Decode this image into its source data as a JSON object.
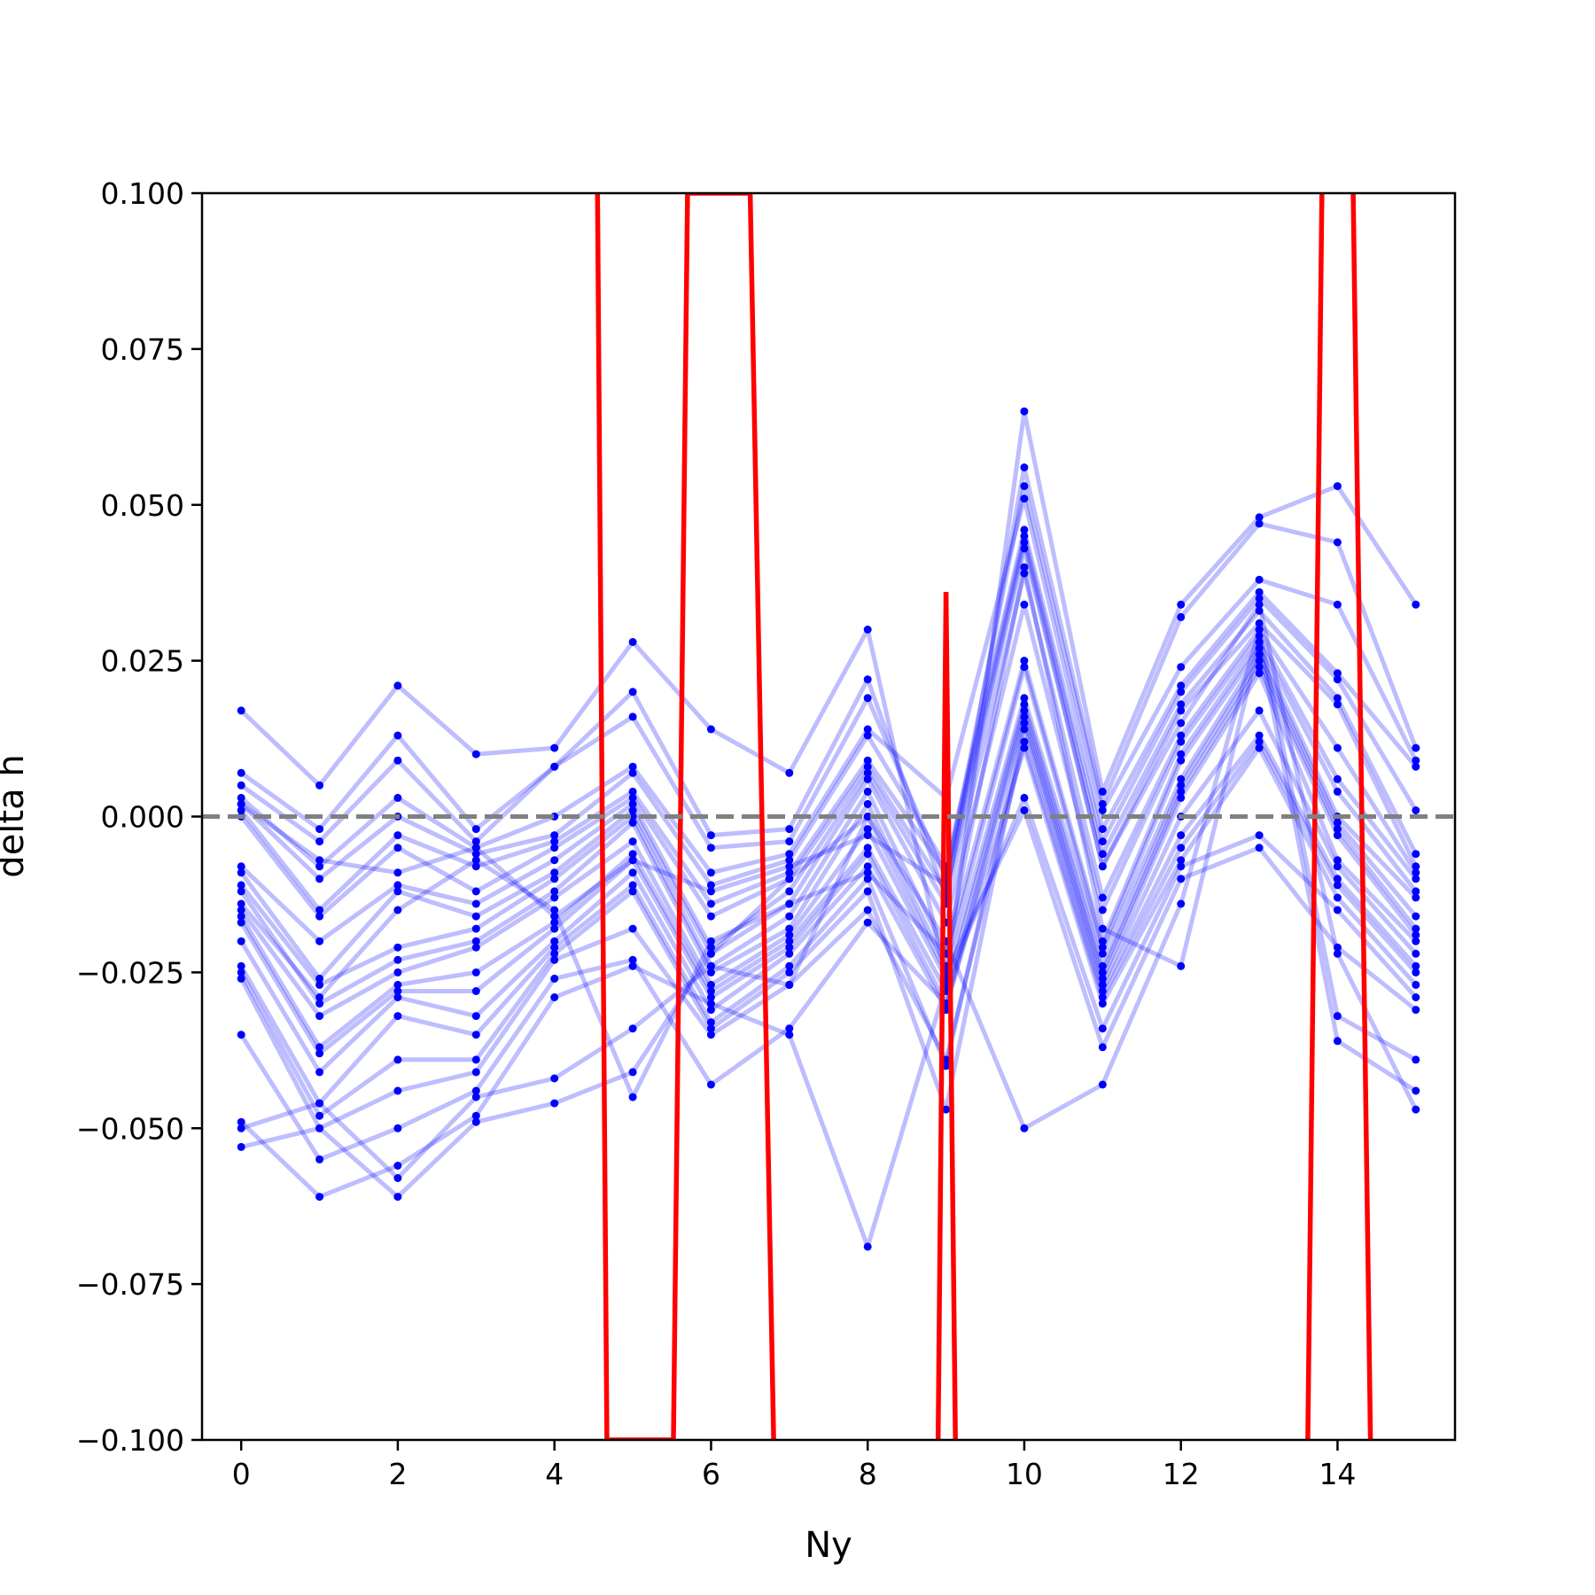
{
  "chart_data": {
    "type": "line",
    "title": "",
    "xlabel": "Ny",
    "ylabel": "delta h",
    "xlim": [
      -0.5,
      15.5
    ],
    "ylim": [
      -0.1,
      0.1
    ],
    "xticks": [
      0,
      2,
      4,
      6,
      8,
      10,
      12,
      14
    ],
    "xtick_labels": [
      "0",
      "2",
      "4",
      "6",
      "8",
      "10",
      "12",
      "14"
    ],
    "yticks": [
      0.1,
      0.075,
      0.05,
      0.025,
      0.0,
      -0.025,
      -0.05,
      -0.075,
      -0.1
    ],
    "ytick_labels": [
      "0.100",
      "0.075",
      "0.050",
      "0.025",
      "0.000",
      "−0.025",
      "−0.050",
      "−0.075",
      "−0.100"
    ],
    "grid": false,
    "reference_line": {
      "y": 0.0,
      "style": "dashed",
      "color": "#808080"
    },
    "colors": {
      "samples": "#0000ff",
      "highlight": "#ff0000"
    },
    "x": [
      0,
      1,
      2,
      3,
      4,
      5,
      6,
      7,
      8,
      9,
      10,
      11,
      12,
      13,
      14,
      15
    ],
    "sample_series": [
      {
        "values": [
          0.017,
          0.005,
          0.021,
          0.01,
          0.011,
          0.028,
          0.014,
          0.007,
          0.03,
          -0.026,
          0.065,
          0.004,
          0.034,
          0.048,
          0.053,
          0.034
        ]
      },
      {
        "values": [
          0.007,
          -0.002,
          0.013,
          -0.002,
          0.008,
          0.02,
          -0.003,
          -0.002,
          0.022,
          -0.013,
          0.056,
          0.002,
          0.032,
          0.047,
          0.044,
          0.011
        ]
      },
      {
        "values": [
          0.005,
          -0.004,
          0.009,
          -0.004,
          0.008,
          0.016,
          -0.005,
          -0.004,
          0.019,
          -0.01,
          0.053,
          0.001,
          0.024,
          0.038,
          0.034,
          0.009
        ]
      },
      {
        "values": [
          0.003,
          -0.008,
          0.003,
          -0.005,
          0.0,
          0.008,
          -0.009,
          -0.006,
          0.014,
          0.003,
          0.051,
          -0.002,
          0.021,
          0.036,
          0.023,
          0.008
        ]
      },
      {
        "values": [
          0.002,
          -0.01,
          0.0,
          -0.006,
          -0.003,
          0.007,
          -0.011,
          -0.007,
          0.013,
          -0.008,
          0.046,
          -0.004,
          0.02,
          0.035,
          0.022,
          0.001
        ]
      },
      {
        "values": [
          0.001,
          -0.015,
          -0.003,
          -0.008,
          -0.004,
          0.004,
          -0.014,
          -0.009,
          0.009,
          -0.009,
          0.045,
          -0.006,
          0.018,
          0.033,
          0.019,
          -0.006
        ]
      },
      {
        "values": [
          0.0,
          -0.016,
          -0.005,
          -0.012,
          -0.005,
          0.003,
          -0.016,
          -0.01,
          0.008,
          -0.012,
          0.043,
          -0.008,
          0.017,
          0.031,
          0.018,
          -0.008
        ]
      },
      {
        "values": [
          -0.008,
          -0.02,
          -0.011,
          -0.014,
          -0.007,
          0.002,
          -0.021,
          -0.012,
          0.007,
          -0.014,
          0.039,
          -0.013,
          0.013,
          0.03,
          0.011,
          -0.009
        ]
      },
      {
        "values": [
          -0.009,
          -0.026,
          -0.012,
          -0.016,
          -0.009,
          0.001,
          -0.022,
          -0.014,
          0.006,
          -0.017,
          0.034,
          -0.015,
          0.012,
          0.029,
          0.006,
          -0.01
        ]
      },
      {
        "values": [
          -0.011,
          -0.027,
          -0.021,
          -0.018,
          -0.01,
          0.0,
          -0.024,
          -0.016,
          0.004,
          -0.022,
          0.025,
          -0.02,
          0.01,
          0.028,
          0.004,
          -0.012
        ]
      },
      {
        "values": [
          -0.012,
          -0.03,
          -0.023,
          -0.02,
          -0.012,
          -0.001,
          -0.025,
          -0.018,
          0.002,
          -0.024,
          0.024,
          -0.021,
          0.009,
          0.027,
          0.0,
          -0.013
        ]
      },
      {
        "values": [
          -0.015,
          -0.032,
          -0.025,
          -0.021,
          -0.013,
          -0.004,
          -0.027,
          -0.019,
          -0.002,
          -0.026,
          0.019,
          -0.022,
          0.006,
          0.026,
          -0.001,
          -0.016
        ]
      },
      {
        "values": [
          -0.016,
          -0.037,
          -0.027,
          -0.025,
          -0.017,
          -0.006,
          -0.028,
          -0.02,
          -0.005,
          -0.028,
          0.018,
          -0.024,
          0.005,
          0.025,
          -0.002,
          -0.018
        ]
      },
      {
        "values": [
          -0.017,
          -0.038,
          -0.028,
          -0.028,
          -0.018,
          -0.007,
          -0.029,
          -0.021,
          -0.006,
          -0.03,
          0.017,
          -0.025,
          0.004,
          0.024,
          -0.003,
          -0.019
        ]
      },
      {
        "values": [
          -0.02,
          -0.041,
          -0.029,
          -0.032,
          -0.02,
          -0.009,
          -0.031,
          -0.022,
          -0.008,
          -0.031,
          0.016,
          -0.026,
          0.003,
          0.023,
          -0.007,
          -0.02
        ]
      },
      {
        "values": [
          -0.024,
          -0.046,
          -0.032,
          -0.035,
          -0.021,
          -0.011,
          -0.033,
          -0.024,
          -0.01,
          -0.04,
          0.015,
          -0.027,
          0.0,
          0.017,
          -0.008,
          -0.022
        ]
      },
      {
        "values": [
          -0.025,
          -0.048,
          -0.039,
          -0.039,
          -0.022,
          -0.012,
          -0.034,
          -0.025,
          -0.012,
          -0.047,
          0.014,
          -0.028,
          -0.003,
          0.013,
          -0.01,
          -0.024
        ]
      },
      {
        "values": [
          -0.026,
          -0.05,
          -0.044,
          -0.041,
          -0.023,
          -0.018,
          -0.035,
          -0.027,
          -0.015,
          -0.039,
          0.012,
          -0.029,
          -0.005,
          0.012,
          -0.011,
          -0.025
        ]
      },
      {
        "values": [
          -0.035,
          -0.055,
          -0.05,
          -0.044,
          -0.026,
          -0.023,
          -0.043,
          -0.034,
          -0.017,
          -0.03,
          0.011,
          -0.03,
          -0.007,
          0.011,
          -0.013,
          -0.027
        ]
      },
      {
        "values": [
          -0.049,
          -0.061,
          -0.056,
          -0.048,
          -0.029,
          -0.024,
          -0.03,
          -0.035,
          -0.069,
          -0.027,
          0.003,
          -0.034,
          -0.008,
          -0.003,
          -0.015,
          -0.029
        ]
      },
      {
        "values": [
          -0.05,
          -0.046,
          -0.058,
          -0.045,
          -0.042,
          -0.034,
          -0.024,
          -0.027,
          0.0,
          -0.025,
          0.001,
          -0.037,
          -0.01,
          -0.005,
          -0.021,
          -0.031
        ]
      },
      {
        "values": [
          -0.053,
          -0.05,
          -0.061,
          -0.049,
          -0.046,
          -0.041,
          -0.022,
          -0.01,
          0.0,
          -0.02,
          -0.05,
          -0.043,
          -0.014,
          0.03,
          -0.032,
          -0.039
        ]
      },
      {
        "values": [
          -0.014,
          -0.029,
          -0.015,
          -0.007,
          -0.015,
          -0.045,
          -0.02,
          -0.014,
          -0.009,
          -0.022,
          0.04,
          -0.018,
          -0.024,
          0.028,
          -0.036,
          -0.044
        ]
      },
      {
        "values": [
          0.002,
          -0.007,
          -0.009,
          -0.005,
          -0.016,
          -0.007,
          -0.012,
          -0.008,
          -0.003,
          -0.011,
          0.044,
          -0.008,
          0.015,
          0.034,
          -0.022,
          -0.047
        ]
      }
    ],
    "highlight_series": {
      "points": [
        [
          4.55,
          0.1
        ],
        [
          4.67,
          -0.1
        ],
        [
          5.52,
          -0.1
        ],
        [
          5.7,
          0.1
        ],
        [
          6.5,
          0.1
        ],
        [
          6.8,
          -0.1
        ],
        [
          8.9,
          -0.1
        ],
        [
          9.0,
          0.036
        ],
        [
          9.12,
          -0.1
        ],
        [
          13.62,
          -0.1
        ],
        [
          13.8,
          0.1
        ],
        [
          14.2,
          0.1
        ],
        [
          14.42,
          -0.1
        ]
      ],
      "segments": [
        [
          0,
          1
        ],
        [
          1,
          2
        ],
        [
          2,
          3
        ],
        [
          3,
          4
        ],
        [
          4,
          5
        ],
        [
          6,
          7
        ],
        [
          7,
          8
        ],
        [
          9,
          10
        ],
        [
          11,
          12
        ]
      ]
    }
  }
}
